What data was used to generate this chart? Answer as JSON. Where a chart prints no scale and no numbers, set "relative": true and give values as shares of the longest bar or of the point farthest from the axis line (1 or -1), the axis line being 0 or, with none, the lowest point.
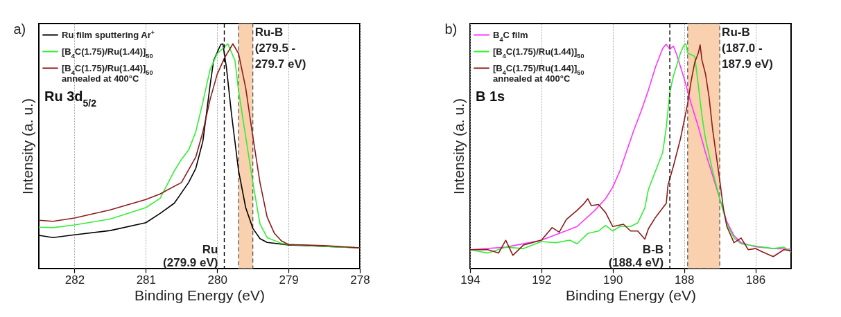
{
  "chart_data": [
    {
      "type": "line",
      "title": "a)",
      "xlabel": "Binding Energy (eV)",
      "ylabel": "Intensity (a. u.)",
      "relative": true,
      "grid": "x",
      "legend": "top left",
      "line_style": "solid",
      "xlim": [
        282.5,
        278
      ],
      "xticks": [
        282,
        281,
        280,
        279,
        278
      ],
      "annotations": [
        "Ru 3d$_{5/2}$"
      ],
      "ref_lines": [
        {
          "axis": "x",
          "value": 279.9,
          "label": "Ru\n(279.9 eV)",
          "line_style": "dashed",
          "color": "#000000"
        }
      ],
      "bands": [
        {
          "axis": "x",
          "from": 279.7,
          "to": 279.5,
          "label": "Ru-B\n(279.5 -\n279.7 eV)",
          "color": "#f9c9a0"
        }
      ],
      "series": [
        {
          "name": "Ru film sputtering Ar$^{+}$",
          "color": "#000000",
          "x": [
            282.5,
            282.3,
            282,
            281.5,
            281,
            280.8,
            280.6,
            280.4,
            280.3,
            280.2,
            280.15,
            280.1,
            280.05,
            279.95,
            279.92,
            279.87,
            279.8,
            279.7,
            279.6,
            279.5,
            279.4,
            279.3,
            279,
            278.5,
            278
          ],
          "values": [
            0.148,
            0.138,
            0.15,
            0.169,
            0.204,
            0.245,
            0.291,
            0.383,
            0.445,
            0.567,
            0.69,
            0.813,
            0.925,
            0.997,
            1.0,
            0.894,
            0.69,
            0.435,
            0.271,
            0.179,
            0.133,
            0.116,
            0.105,
            0.099,
            0.092
          ]
        },
        {
          "name": "[B$_{4}$C(1.75)/Ru(1.44)]$_{50}$",
          "color": "#33ee33",
          "x": [
            282.5,
            282.3,
            282,
            281.5,
            281,
            280.8,
            280.6,
            280.5,
            280.4,
            280.3,
            280.2,
            280.1,
            280,
            279.85,
            279.75,
            279.7,
            279.6,
            279.5,
            279.4,
            279.3,
            279.1,
            279,
            278.5,
            278
          ],
          "values": [
            0.184,
            0.182,
            0.194,
            0.22,
            0.271,
            0.312,
            0.435,
            0.486,
            0.527,
            0.608,
            0.741,
            0.884,
            0.956,
            1.0,
            0.925,
            0.791,
            0.587,
            0.383,
            0.199,
            0.138,
            0.112,
            0.107,
            0.099,
            0.092
          ]
        },
        {
          "name": "[B$_{4}$C(1.75)/Ru(1.44)]$_{50}$\nannealed at 400°C",
          "color": "#8b1a1a",
          "x": [
            282.5,
            282.3,
            282,
            281.5,
            281,
            280.8,
            280.5,
            280.3,
            280.2,
            280.1,
            280,
            279.9,
            279.78,
            279.7,
            279.6,
            279.5,
            279.4,
            279.3,
            279.2,
            279.1,
            279,
            278.5,
            278
          ],
          "values": [
            0.215,
            0.21,
            0.225,
            0.261,
            0.307,
            0.332,
            0.383,
            0.496,
            0.608,
            0.751,
            0.864,
            0.935,
            1.0,
            0.956,
            0.803,
            0.587,
            0.383,
            0.23,
            0.158,
            0.123,
            0.107,
            0.102,
            0.092
          ]
        }
      ]
    },
    {
      "type": "line",
      "title": "b)",
      "xlabel": "Binding Energy (eV)",
      "ylabel": "Intensity (a. u.)",
      "relative": true,
      "grid": "x",
      "legend": "top left",
      "line_style": "solid",
      "xlim": [
        194,
        185
      ],
      "xticks": [
        194,
        192,
        190,
        188,
        186
      ],
      "annotations": [
        "B 1s"
      ],
      "ref_lines": [
        {
          "axis": "x",
          "value": 188.4,
          "label": "B-B\n(188.4 eV)",
          "line_style": "dashed",
          "color": "#000000"
        }
      ],
      "bands": [
        {
          "axis": "x",
          "from": 187.9,
          "to": 187.0,
          "label": "Ru-B\n(187.0 -\n187.9 eV)",
          "color": "#f9c9a0"
        }
      ],
      "series": [
        {
          "name": "B$_{4}$C film",
          "color": "#ff33ff",
          "x": [
            194,
            193,
            192,
            191.5,
            191,
            190.5,
            190.2,
            190,
            189.8,
            189.6,
            189.4,
            189.2,
            189,
            188.8,
            188.6,
            188.5,
            188.4,
            188.3,
            188.2,
            188,
            187.8,
            187.6,
            187.4,
            187.2,
            187,
            186.8,
            186.6,
            186.4,
            186,
            185.5,
            185
          ],
          "values": [
            0.084,
            0.095,
            0.126,
            0.156,
            0.187,
            0.259,
            0.311,
            0.362,
            0.434,
            0.527,
            0.619,
            0.702,
            0.794,
            0.897,
            0.979,
            0.998,
            0.975,
            0.99,
            0.949,
            0.846,
            0.733,
            0.63,
            0.516,
            0.414,
            0.311,
            0.208,
            0.146,
            0.115,
            0.097,
            0.089,
            0.086
          ]
        },
        {
          "name": "[B$_{4}$C(1.75)/Ru(1.44)]$_{50}$",
          "color": "#33ee33",
          "x": [
            194,
            193.5,
            193,
            192.5,
            192,
            191.6,
            191.2,
            191,
            190.7,
            190.4,
            190.2,
            190,
            189.8,
            189.5,
            189.3,
            189.1,
            189,
            188.8,
            188.6,
            188.5,
            188.4,
            188.3,
            188.1,
            188,
            187.95,
            187.9,
            187.7,
            187.6,
            187.5,
            187.4,
            187.2,
            187,
            186.8,
            186.6,
            186.4,
            186,
            185.5,
            185.2,
            185
          ],
          "values": [
            0.084,
            0.069,
            0.095,
            0.089,
            0.12,
            0.115,
            0.126,
            0.11,
            0.156,
            0.167,
            0.192,
            0.167,
            0.187,
            0.187,
            0.203,
            0.27,
            0.352,
            0.434,
            0.516,
            0.626,
            0.784,
            0.856,
            0.959,
            0.995,
            1.0,
            0.959,
            0.944,
            0.815,
            0.681,
            0.578,
            0.434,
            0.311,
            0.198,
            0.136,
            0.11,
            0.1,
            0.089,
            0.095,
            0.074
          ]
        },
        {
          "name": "[B$_{4}$C(1.75)/Ru(1.44)]$_{50}$\nannealed at 400°C",
          "color": "#8b1a1a",
          "x": [
            194,
            193.5,
            193.2,
            193,
            192.8,
            192.5,
            192,
            191.7,
            191.5,
            191.3,
            191,
            190.8,
            190.7,
            190.6,
            190.4,
            190.2,
            190,
            189.7,
            189.5,
            189.3,
            189.1,
            189,
            188.8,
            188.5,
            188.45,
            188.3,
            188.1,
            187.9,
            187.8,
            187.7,
            187.6,
            187.55,
            187.5,
            187.4,
            187.3,
            187.2,
            187.1,
            187,
            186.9,
            186.8,
            186.6,
            186.4,
            186.2,
            186,
            185.8,
            185.5,
            185.2,
            185
          ],
          "values": [
            0.084,
            0.084,
            0.069,
            0.126,
            0.059,
            0.105,
            0.126,
            0.182,
            0.162,
            0.218,
            0.259,
            0.29,
            0.311,
            0.28,
            0.285,
            0.249,
            0.187,
            0.197,
            0.167,
            0.167,
            0.131,
            0.177,
            0.228,
            0.29,
            0.372,
            0.455,
            0.578,
            0.733,
            0.836,
            0.918,
            0.959,
            0.995,
            0.928,
            0.866,
            0.763,
            0.619,
            0.506,
            0.393,
            0.27,
            0.187,
            0.115,
            0.136,
            0.084,
            0.089,
            0.074,
            0.053,
            0.084,
            0.079
          ]
        }
      ]
    }
  ]
}
